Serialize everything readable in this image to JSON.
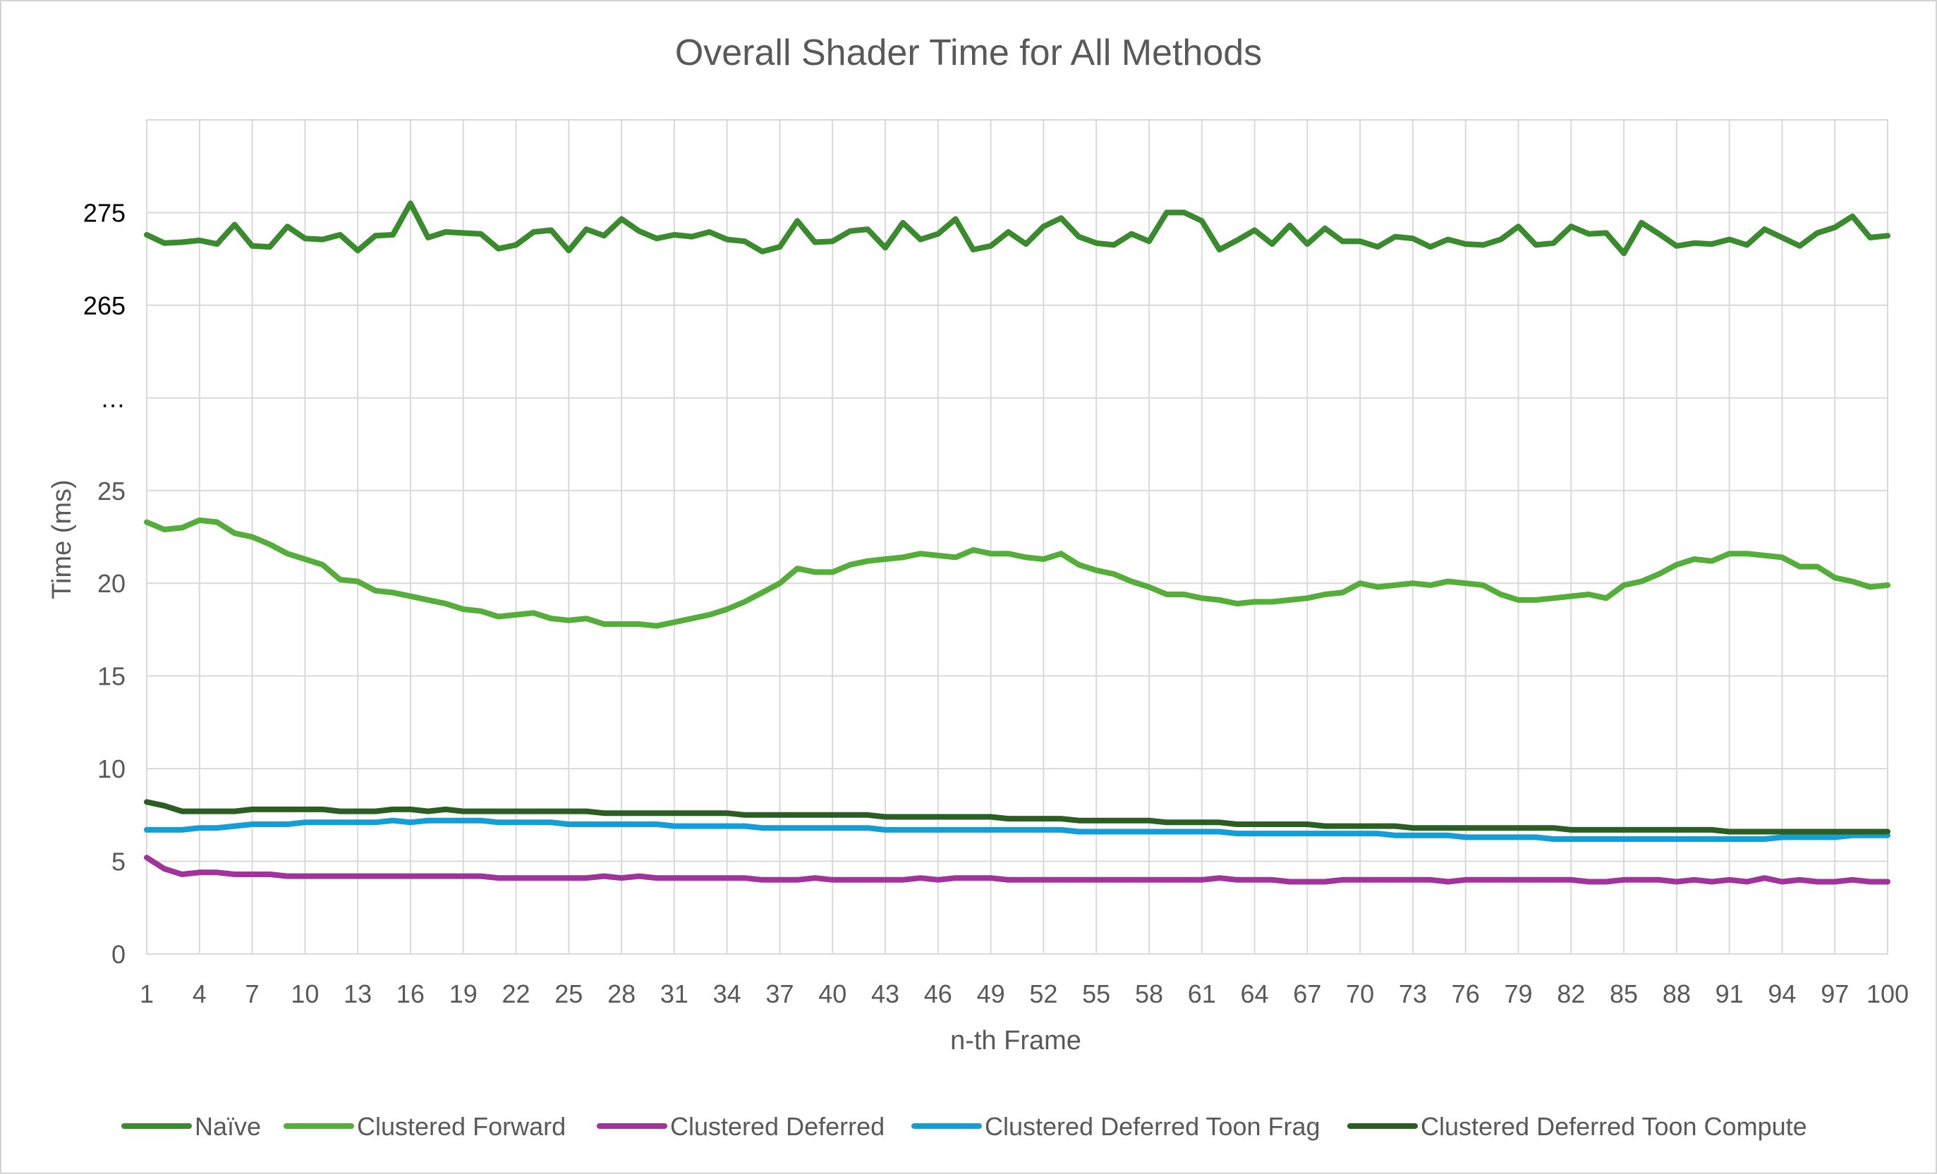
{
  "chart_data": {
    "type": "line",
    "title": "Overall Shader Time for All Methods",
    "xlabel": "n-th Frame",
    "ylabel": "Time (ms)",
    "y_ticks": [
      "0",
      "5",
      "10",
      "15",
      "20",
      "25",
      "…",
      "265",
      "275"
    ],
    "y_axis_note": "broken axis: rows 0–25 ms, a '…' break row, then 265 and 275 ms",
    "x_ticks": [
      "1",
      "4",
      "7",
      "10",
      "13",
      "16",
      "19",
      "22",
      "25",
      "28",
      "31",
      "34",
      "37",
      "40",
      "43",
      "46",
      "49",
      "52",
      "55",
      "58",
      "61",
      "64",
      "67",
      "70",
      "73",
      "76",
      "79",
      "82",
      "85",
      "88",
      "91",
      "94",
      "97",
      "100"
    ],
    "x_range": [
      1,
      100
    ],
    "grid": true,
    "legend_position": "bottom",
    "series": [
      {
        "name": "Naïve",
        "color": "#3a8a2e",
        "values": [
          272.6,
          271.7,
          271.8,
          272.0,
          271.6,
          273.7,
          271.4,
          271.3,
          273.5,
          272.2,
          272.1,
          272.6,
          270.9,
          272.5,
          272.6,
          276.0,
          272.3,
          272.9,
          272.8,
          272.7,
          271.1,
          271.5,
          272.9,
          273.1,
          270.9,
          273.2,
          272.5,
          274.3,
          273.0,
          272.2,
          272.6,
          272.4,
          272.9,
          272.1,
          271.9,
          270.8,
          271.3,
          274.1,
          271.8,
          271.9,
          273.0,
          273.2,
          271.2,
          273.9,
          272.1,
          272.7,
          274.3,
          271.0,
          271.4,
          272.9,
          271.6,
          273.5,
          274.4,
          272.4,
          271.7,
          271.5,
          272.7,
          271.9,
          275.0,
          275.0,
          274.1,
          271.0,
          272.0,
          273.1,
          271.6,
          273.6,
          271.6,
          273.3,
          271.9,
          271.9,
          271.3,
          272.4,
          272.2,
          271.3,
          272.1,
          271.6,
          271.5,
          272.1,
          273.5,
          271.5,
          271.7,
          273.5,
          272.7,
          272.8,
          270.6,
          273.9,
          272.7,
          271.4,
          271.7,
          271.6,
          272.1,
          271.5,
          273.2,
          272.3,
          271.4,
          272.8,
          273.4,
          274.6,
          272.3,
          272.5
        ]
      },
      {
        "name": "Clustered Forward",
        "color": "#55ad3a",
        "values": [
          23.3,
          22.9,
          23.0,
          23.4,
          23.3,
          22.7,
          22.5,
          22.1,
          21.6,
          21.3,
          21.0,
          20.2,
          20.1,
          19.6,
          19.5,
          19.3,
          19.1,
          18.9,
          18.6,
          18.5,
          18.2,
          18.3,
          18.4,
          18.1,
          18.0,
          18.1,
          17.8,
          17.8,
          17.8,
          17.7,
          17.9,
          18.1,
          18.3,
          18.6,
          19.0,
          19.5,
          20.0,
          20.8,
          20.6,
          20.6,
          21.0,
          21.2,
          21.3,
          21.4,
          21.6,
          21.5,
          21.4,
          21.8,
          21.6,
          21.6,
          21.4,
          21.3,
          21.6,
          21.0,
          20.7,
          20.5,
          20.1,
          19.8,
          19.4,
          19.4,
          19.2,
          19.1,
          18.9,
          19.0,
          19.0,
          19.1,
          19.2,
          19.4,
          19.5,
          20.0,
          19.8,
          19.9,
          20.0,
          19.9,
          20.1,
          20.0,
          19.9,
          19.4,
          19.1,
          19.1,
          19.2,
          19.3,
          19.4,
          19.2,
          19.9,
          20.1,
          20.5,
          21.0,
          21.3,
          21.2,
          21.6,
          21.6,
          21.5,
          21.4,
          20.9,
          20.9,
          20.3,
          20.1,
          19.8,
          19.9
        ]
      },
      {
        "name": "Clustered Deferred",
        "color": "#a1349b",
        "values": [
          5.2,
          4.6,
          4.3,
          4.4,
          4.4,
          4.3,
          4.3,
          4.3,
          4.2,
          4.2,
          4.2,
          4.2,
          4.2,
          4.2,
          4.2,
          4.2,
          4.2,
          4.2,
          4.2,
          4.2,
          4.1,
          4.1,
          4.1,
          4.1,
          4.1,
          4.1,
          4.2,
          4.1,
          4.2,
          4.1,
          4.1,
          4.1,
          4.1,
          4.1,
          4.1,
          4.0,
          4.0,
          4.0,
          4.1,
          4.0,
          4.0,
          4.0,
          4.0,
          4.0,
          4.1,
          4.0,
          4.1,
          4.1,
          4.1,
          4.0,
          4.0,
          4.0,
          4.0,
          4.0,
          4.0,
          4.0,
          4.0,
          4.0,
          4.0,
          4.0,
          4.0,
          4.1,
          4.0,
          4.0,
          4.0,
          3.9,
          3.9,
          3.9,
          4.0,
          4.0,
          4.0,
          4.0,
          4.0,
          4.0,
          3.9,
          4.0,
          4.0,
          4.0,
          4.0,
          4.0,
          4.0,
          4.0,
          3.9,
          3.9,
          4.0,
          4.0,
          4.0,
          3.9,
          4.0,
          3.9,
          4.0,
          3.9,
          4.1,
          3.9,
          4.0,
          3.9,
          3.9,
          4.0,
          3.9,
          3.9
        ]
      },
      {
        "name": "Clustered Deferred Toon Frag",
        "color": "#149ed8",
        "values": [
          6.7,
          6.7,
          6.7,
          6.8,
          6.8,
          6.9,
          7.0,
          7.0,
          7.0,
          7.1,
          7.1,
          7.1,
          7.1,
          7.1,
          7.2,
          7.1,
          7.2,
          7.2,
          7.2,
          7.2,
          7.1,
          7.1,
          7.1,
          7.1,
          7.0,
          7.0,
          7.0,
          7.0,
          7.0,
          7.0,
          6.9,
          6.9,
          6.9,
          6.9,
          6.9,
          6.8,
          6.8,
          6.8,
          6.8,
          6.8,
          6.8,
          6.8,
          6.7,
          6.7,
          6.7,
          6.7,
          6.7,
          6.7,
          6.7,
          6.7,
          6.7,
          6.7,
          6.7,
          6.6,
          6.6,
          6.6,
          6.6,
          6.6,
          6.6,
          6.6,
          6.6,
          6.6,
          6.5,
          6.5,
          6.5,
          6.5,
          6.5,
          6.5,
          6.5,
          6.5,
          6.5,
          6.4,
          6.4,
          6.4,
          6.4,
          6.3,
          6.3,
          6.3,
          6.3,
          6.3,
          6.2,
          6.2,
          6.2,
          6.2,
          6.2,
          6.2,
          6.2,
          6.2,
          6.2,
          6.2,
          6.2,
          6.2,
          6.2,
          6.3,
          6.3,
          6.3,
          6.3,
          6.4,
          6.4,
          6.4
        ]
      },
      {
        "name": "Clustered Deferred Toon Compute",
        "color": "#2a5e22",
        "values": [
          8.2,
          8.0,
          7.7,
          7.7,
          7.7,
          7.7,
          7.8,
          7.8,
          7.8,
          7.8,
          7.8,
          7.7,
          7.7,
          7.7,
          7.8,
          7.8,
          7.7,
          7.8,
          7.7,
          7.7,
          7.7,
          7.7,
          7.7,
          7.7,
          7.7,
          7.7,
          7.6,
          7.6,
          7.6,
          7.6,
          7.6,
          7.6,
          7.6,
          7.6,
          7.5,
          7.5,
          7.5,
          7.5,
          7.5,
          7.5,
          7.5,
          7.5,
          7.4,
          7.4,
          7.4,
          7.4,
          7.4,
          7.4,
          7.4,
          7.3,
          7.3,
          7.3,
          7.3,
          7.2,
          7.2,
          7.2,
          7.2,
          7.2,
          7.1,
          7.1,
          7.1,
          7.1,
          7.0,
          7.0,
          7.0,
          7.0,
          7.0,
          6.9,
          6.9,
          6.9,
          6.9,
          6.9,
          6.8,
          6.8,
          6.8,
          6.8,
          6.8,
          6.8,
          6.8,
          6.8,
          6.8,
          6.7,
          6.7,
          6.7,
          6.7,
          6.7,
          6.7,
          6.7,
          6.7,
          6.7,
          6.6,
          6.6,
          6.6,
          6.6,
          6.6,
          6.6,
          6.6,
          6.6,
          6.6,
          6.6
        ]
      }
    ]
  }
}
